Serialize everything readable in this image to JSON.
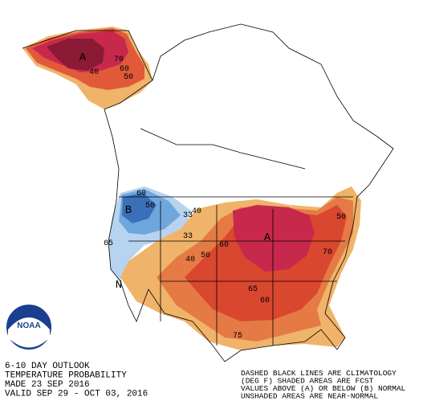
{
  "logo": "NOAA",
  "legend_left": {
    "lines": [
      "6-10 DAY OUTLOOK",
      "TEMPERATURE PROBABILITY",
      "MADE  23 SEP 2016",
      "VALID  SEP 29 - OCT 03, 2016"
    ]
  },
  "legend_right": {
    "lines": [
      "DASHED BLACK LINES ARE CLIMATOLOGY",
      "(DEG F) SHADED AREAS ARE FCST",
      "VALUES ABOVE (A) OR BELOW (B) NORMAL",
      "UNSHADED AREAS ARE NEAR-NORMAL"
    ]
  },
  "map_labels": [
    "A",
    70,
    60,
    50,
    40,
    60,
    50,
    "B",
    40,
    33,
    33,
    65,
    40,
    50,
    60,
    "A",
    65,
    60,
    70,
    50,
    75,
    "N"
  ]
}
